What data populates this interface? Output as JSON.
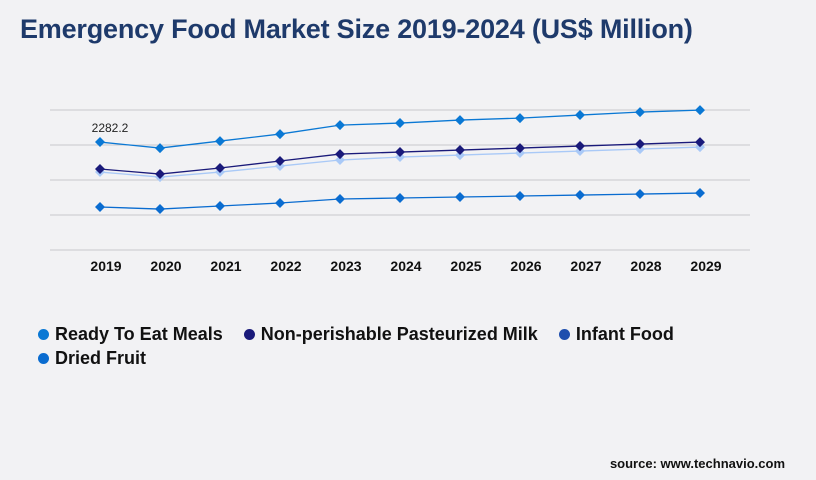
{
  "chart_data": {
    "type": "line",
    "title": "Emergency Food Market Size 2019-2024 (US$ Million)",
    "categories": [
      "2019",
      "2020",
      "2021",
      "2022",
      "2023",
      "2024",
      "2025",
      "2026",
      "2027",
      "2028",
      "2029"
    ],
    "ylim": [
      0,
      2960
    ],
    "grid": true,
    "legend_position": "bottom",
    "series": [
      {
        "name": "Ready To Eat Meals",
        "color": "#0a78d4",
        "values": [
          2282.2,
          2155,
          2303,
          2451,
          2641,
          2684,
          2747,
          2789,
          2853,
          2916,
          2958
        ]
      },
      {
        "name": "Non-perishable Pasteurized Milk",
        "color": "#1a1a7a",
        "values": [
          1712,
          1606,
          1733,
          1881,
          2028,
          2071,
          2113,
          2155,
          2198,
          2240,
          2282
        ]
      },
      {
        "name": "Infant Food",
        "color": "#a9c9f7",
        "legend_color": "#1f4fae",
        "values": [
          1648,
          1542,
          1648,
          1775,
          1902,
          1965,
          2007,
          2050,
          2092,
          2134,
          2176
        ]
      },
      {
        "name": "Dried Fruit",
        "color": "#0a6cd0",
        "values": [
          909,
          866,
          930,
          993,
          1078,
          1099,
          1120,
          1141,
          1162,
          1183,
          1204
        ]
      }
    ],
    "annotations": [
      {
        "series": 0,
        "x": "2019",
        "text": "2282.2"
      }
    ]
  },
  "source": "source: www.technavio.com"
}
